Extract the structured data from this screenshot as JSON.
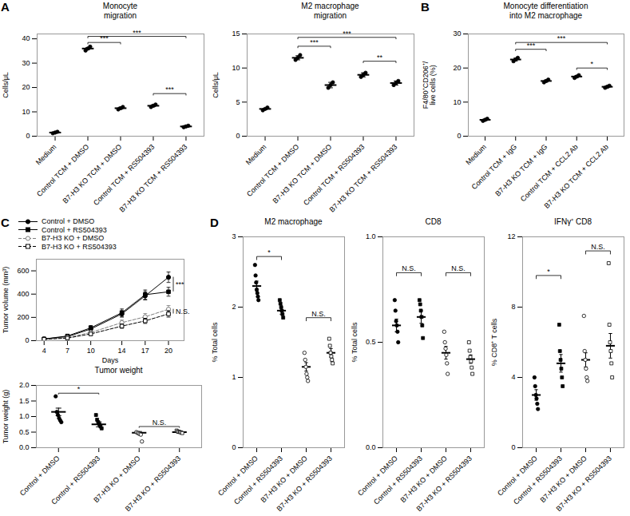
{
  "chart_data": [
    {
      "type": "dot",
      "panel_label": "A",
      "title": "Monocyte\nmigration",
      "ylabel": "Cells/μL",
      "ylim": [
        0,
        42
      ],
      "yticks": [
        0,
        10,
        20,
        30,
        40
      ],
      "categories": [
        "Medium",
        "Control TCM + DMSO",
        "B7-H3 KO TCM + DMSO",
        "Control TCM + RS504393",
        "B7-H3 KO TCM + RS504393"
      ],
      "values": [
        [
          1.2,
          1.5,
          1.8
        ],
        [
          35.2,
          36.0,
          36.8
        ],
        [
          11.0,
          11.5,
          12.0
        ],
        [
          12.0,
          12.5,
          13.0
        ],
        [
          3.7,
          4.0,
          4.3
        ]
      ],
      "means": [
        1.5,
        36.0,
        11.5,
        12.5,
        4.0
      ],
      "errors": [
        0.2,
        0.4,
        0.4,
        0.4,
        0.3
      ],
      "marker": "circle",
      "color": "black",
      "sig_bars": [
        {
          "from": "Control TCM + DMSO",
          "to": "B7-H3 KO TCM + DMSO",
          "y": 38.5,
          "label": "***"
        },
        {
          "from": "Control TCM + DMSO",
          "to": "B7-H3 KO TCM + RS504393",
          "y": 41.0,
          "label": "***"
        },
        {
          "from": "Control TCM + RS504393",
          "to": "B7-H3 KO TCM + RS504393",
          "y": 17.5,
          "label": "***"
        }
      ]
    },
    {
      "type": "dot",
      "title": "M2 macrophage\nmigration",
      "ylabel": "Cells/μL",
      "ylim": [
        0,
        15
      ],
      "yticks": [
        0,
        5,
        10,
        15
      ],
      "categories": [
        "Medium",
        "Control TCM + DMSO",
        "B7-H3 KO TCM + DMSO",
        "Control TCM + RS504393",
        "B7-H3 KO TCM + RS504393"
      ],
      "values": [
        [
          3.8,
          4.0,
          4.2
        ],
        [
          11.2,
          11.5,
          11.9
        ],
        [
          7.1,
          7.5,
          7.9
        ],
        [
          8.7,
          9.0,
          9.3
        ],
        [
          7.5,
          7.8,
          8.1
        ]
      ],
      "means": [
        4.0,
        11.5,
        7.5,
        9.0,
        7.8
      ],
      "errors": [
        0.1,
        0.3,
        0.4,
        0.3,
        0.3
      ],
      "marker": "circle",
      "color": "black",
      "sig_bars": [
        {
          "from": "Control TCM + DMSO",
          "to": "B7-H3 KO TCM + DMSO",
          "y": 13.2,
          "label": "***"
        },
        {
          "from": "Control TCM + DMSO",
          "to": "B7-H3 KO TCM + RS504393",
          "y": 14.5,
          "label": "***"
        },
        {
          "from": "Control TCM + RS504393",
          "to": "B7-H3 KO TCM + RS504393",
          "y": 11.0,
          "label": "**"
        }
      ]
    },
    {
      "type": "dot",
      "panel_label": "B",
      "title": "Monocyte differentiation\ninto M2 macrophage",
      "ylabel": "F4/80⁺CD206⁺/\nlive cells (%)",
      "ylim": [
        0,
        30
      ],
      "yticks": [
        0,
        10,
        20,
        30
      ],
      "categories": [
        "Medium",
        "Control TCM + IgG",
        "B7-H3 KO TCM + IgG",
        "Control TCM + CCL2 Ab",
        "B7-H3 KO TCM + CCL2 Ab"
      ],
      "values": [
        [
          4.5,
          4.8,
          5.1
        ],
        [
          22.0,
          22.5,
          23.0
        ],
        [
          15.8,
          16.2,
          16.6
        ],
        [
          17.1,
          17.5,
          17.9
        ],
        [
          14.2,
          14.5,
          14.8
        ]
      ],
      "means": [
        4.8,
        22.5,
        16.2,
        17.5,
        14.5
      ],
      "errors": [
        0.2,
        0.4,
        0.3,
        0.3,
        0.3
      ],
      "marker": "circle",
      "color": "black",
      "sig_bars": [
        {
          "from": "Control TCM + IgG",
          "to": "B7-H3 KO TCM + IgG",
          "y": 25.5,
          "label": "***"
        },
        {
          "from": "Control TCM + IgG",
          "to": "B7-H3 KO TCM + CCL2 Ab",
          "y": 27.5,
          "label": "***"
        },
        {
          "from": "Control TCM + CCL2 Ab",
          "to": "B7-H3 KO TCM + CCL2 Ab",
          "y": 20.0,
          "label": "*"
        }
      ]
    },
    {
      "type": "line",
      "panel_label": "C",
      "xlabel": "Days",
      "ylabel": "Tumor volume (mm³)",
      "x": [
        4,
        7,
        10,
        14,
        17,
        20
      ],
      "xlim": [
        3,
        22
      ],
      "xticks": [
        4,
        7,
        10,
        14,
        17,
        20
      ],
      "ylim": [
        0,
        700
      ],
      "yticks": [
        0,
        200,
        400,
        600
      ],
      "legend": "top",
      "series": [
        {
          "name": "Control + DMSO",
          "color": "black",
          "marker": "circle",
          "line_style": "solid",
          "values": [
            15,
            35,
            100,
            230,
            385,
            545
          ],
          "errors": [
            3,
            8,
            18,
            28,
            35,
            45
          ]
        },
        {
          "name": "Control + RS504393",
          "color": "black",
          "marker": "square",
          "line_style": "solid",
          "values": [
            15,
            40,
            110,
            240,
            395,
            420
          ],
          "errors": [
            3,
            10,
            20,
            32,
            40,
            38
          ]
        },
        {
          "name": "B7-H3 KO + DMSO",
          "color": "gray",
          "marker": "circle-open",
          "line_style": "dashed",
          "values": [
            12,
            28,
            70,
            155,
            205,
            270
          ],
          "errors": [
            2,
            7,
            12,
            22,
            28,
            32
          ]
        },
        {
          "name": "B7-H3 KO + RS504393",
          "color": "black",
          "marker": "square-open",
          "line_style": "dashed",
          "values": [
            12,
            22,
            58,
            125,
            170,
            230
          ],
          "errors": [
            2,
            5,
            10,
            18,
            22,
            28
          ]
        }
      ],
      "annotations": [
        {
          "text": "***",
          "between": [
            "Control + DMSO",
            "Control + RS504393"
          ]
        },
        {
          "text": "N.S.",
          "between": [
            "B7-H3 KO + DMSO",
            "B7-H3 KO + RS504393"
          ]
        }
      ]
    },
    {
      "type": "dot",
      "title": "Tumor weight",
      "ylabel": "Tumor weight (g)",
      "ylim": [
        0,
        2.0
      ],
      "yticks": [
        {
          "value": 0,
          "label": "0.0"
        },
        0.5,
        {
          "value": 1.0,
          "label": "1.0"
        },
        1.5,
        {
          "value": 2.0,
          "label": "2.0"
        }
      ],
      "categories": [
        "Control + DMSO",
        "Control + RS504393",
        "B7-H3 KO + DMSO",
        "B7-H3 KO + RS504393"
      ],
      "values": [
        [
          1.65,
          1.15,
          1.05,
          0.95,
          0.88,
          0.82
        ],
        [
          1.05,
          0.9,
          0.82,
          0.75,
          0.68,
          0.62
        ],
        [
          0.5,
          0.48,
          0.46,
          0.44,
          0.42,
          0.2
        ],
        [
          0.55,
          0.52,
          0.51,
          0.5,
          0.49,
          0.47
        ]
      ],
      "means": [
        1.15,
        0.75,
        0.48,
        0.5
      ],
      "errors": [
        0.12,
        0.08,
        0.04,
        0.03
      ],
      "markers": [
        "circle",
        "square",
        "circle-open",
        "square-open"
      ],
      "color": "black",
      "sig_bars": [
        {
          "from": "Control + DMSO",
          "to": "Control + RS504393",
          "y": 1.75,
          "label": "*"
        },
        {
          "from": "B7-H3 KO + DMSO",
          "to": "B7-H3 KO + RS504393",
          "y": 0.68,
          "label": "N.S."
        }
      ]
    },
    {
      "type": "dot",
      "panel_label": "D",
      "title": "M2 macrophage",
      "ylabel": "% Total cells",
      "ylim": [
        0,
        3
      ],
      "yticks": [
        0,
        1,
        2,
        3
      ],
      "categories": [
        "Control + DMSO",
        "Control + RS504393",
        "B7-H3 KO + DMSO",
        "B7-H3 KO + RS504393"
      ],
      "values": [
        [
          2.6,
          2.45,
          2.35,
          2.25,
          2.2,
          2.15,
          2.1
        ],
        [
          2.1,
          2.05,
          2.0,
          1.95,
          1.9,
          1.85
        ],
        [
          1.35,
          1.25,
          1.15,
          1.05,
          1.0,
          0.95
        ],
        [
          1.55,
          1.45,
          1.35,
          1.3,
          1.25,
          1.2
        ]
      ],
      "means": [
        2.3,
        1.95,
        1.15,
        1.35
      ],
      "errors": [
        0.07,
        0.05,
        0.06,
        0.06
      ],
      "markers": [
        "circle",
        "square",
        "circle-open",
        "square-open"
      ],
      "color": "black",
      "sig_bars": [
        {
          "from": "Control + DMSO",
          "to": "Control + RS504393",
          "y": 2.72,
          "label": "*"
        },
        {
          "from": "B7-H3 KO + DMSO",
          "to": "B7-H3 KO + RS504393",
          "y": 1.85,
          "label": "N.S."
        }
      ]
    },
    {
      "type": "dot",
      "title": "CD8",
      "ylabel": "% Total cells",
      "ylim": [
        0,
        1.0
      ],
      "yticks": [
        {
          "value": 0,
          "label": "0.0"
        },
        0.5,
        {
          "value": 1.0,
          "label": "1.0"
        }
      ],
      "categories": [
        "Control + DMSO",
        "Control + RS504393",
        "B7-H3 KO + DMSO",
        "B7-H3 KO + RS504393"
      ],
      "values": [
        [
          0.7,
          0.65,
          0.6,
          0.58,
          0.55,
          0.5
        ],
        [
          0.7,
          0.68,
          0.65,
          0.62,
          0.58,
          0.52
        ],
        [
          0.55,
          0.5,
          0.47,
          0.44,
          0.4,
          0.35
        ],
        [
          0.5,
          0.46,
          0.43,
          0.41,
          0.38,
          0.35
        ]
      ],
      "means": [
        0.58,
        0.62,
        0.45,
        0.42
      ],
      "errors": [
        0.03,
        0.03,
        0.03,
        0.02
      ],
      "markers": [
        "circle",
        "square",
        "circle-open",
        "square-open"
      ],
      "color": "black",
      "sig_bars": [
        {
          "from": "Control + DMSO",
          "to": "Control + RS504393",
          "y": 0.83,
          "label": "N.S."
        },
        {
          "from": "B7-H3 KO + DMSO",
          "to": "B7-H3 KO + RS504393",
          "y": 0.83,
          "label": "N.S."
        }
      ]
    },
    {
      "type": "dot",
      "title": "IFNγ⁺ CD8",
      "ylabel": "% CD8⁺ T cells",
      "ylim": [
        0,
        12
      ],
      "yticks": [
        0,
        4,
        8,
        12
      ],
      "categories": [
        "Control + DMSO",
        "Control + RS504393",
        "B7-H3 KO + DMSO",
        "B7-H3 KO + RS504393"
      ],
      "values": [
        [
          4.0,
          3.5,
          3.0,
          2.8,
          2.5,
          2.2
        ],
        [
          7.0,
          5.5,
          5.0,
          4.5,
          4.0,
          3.5
        ],
        [
          7.5,
          5.5,
          5.0,
          4.5,
          4.0,
          3.8
        ],
        [
          10.5,
          7.0,
          6.0,
          5.5,
          4.8,
          4.0
        ]
      ],
      "means": [
        3.0,
        4.8,
        5.0,
        5.8
      ],
      "errors": [
        0.3,
        0.5,
        0.4,
        0.7
      ],
      "markers": [
        "circle",
        "square",
        "circle-open",
        "square-open"
      ],
      "color": "black",
      "sig_bars": [
        {
          "from": "Control + DMSO",
          "to": "Control + RS504393",
          "y": 9.8,
          "label": "*"
        },
        {
          "from": "B7-H3 KO + DMSO",
          "to": "B7-H3 KO + RS504393",
          "y": 11.2,
          "label": "N.S."
        }
      ]
    }
  ]
}
